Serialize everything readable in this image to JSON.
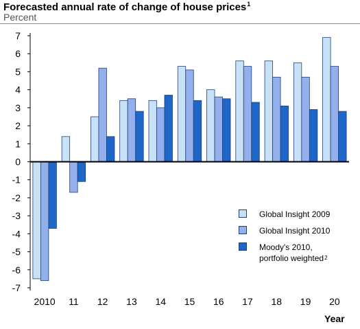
{
  "title": "Forecasted annual rate of change of house prices",
  "title_note": "1",
  "subtitle": "Percent",
  "colors": {
    "Global Insight 2009": "#c9e1f6",
    "Global Insight 2010": "#93b0ec",
    "Moody's 2010": "#1e67c8"
  },
  "legend": [
    {
      "label": "Global Insight 2009",
      "note": ""
    },
    {
      "label": "Global Insight 2010",
      "note": ""
    },
    {
      "label": "Moody's 2010,",
      "label2": "portfolio weighted",
      "note": "2"
    }
  ],
  "chart_data": {
    "type": "bar",
    "title": "Forecasted annual rate of change of house prices",
    "ylabel": "Percent",
    "xlabel": "Year",
    "categories": [
      "2010",
      "11",
      "12",
      "13",
      "14",
      "15",
      "16",
      "17",
      "18",
      "19",
      "20"
    ],
    "series": [
      {
        "name": "Global Insight 2009",
        "values": [
          -6.5,
          1.4,
          2.5,
          3.4,
          3.4,
          5.3,
          4.0,
          5.6,
          5.6,
          5.5,
          6.9
        ]
      },
      {
        "name": "Global Insight 2010",
        "values": [
          -6.6,
          -1.7,
          5.2,
          3.5,
          3.0,
          5.1,
          3.6,
          5.3,
          4.7,
          4.7,
          5.3
        ]
      },
      {
        "name": "Moody's 2010, portfolio weighted",
        "values": [
          -3.7,
          -1.1,
          1.4,
          2.8,
          3.7,
          3.4,
          3.5,
          3.3,
          3.1,
          2.9,
          2.8
        ]
      }
    ],
    "yticks": [
      "7",
      "6",
      "5",
      "4",
      "3",
      "2",
      "1",
      "0",
      "-1",
      "-2",
      "-3",
      "-4",
      "-5",
      "-6",
      "-7"
    ],
    "ylim": [
      -7,
      7
    ],
    "grid": false,
    "legend_position": "bottom-right"
  }
}
